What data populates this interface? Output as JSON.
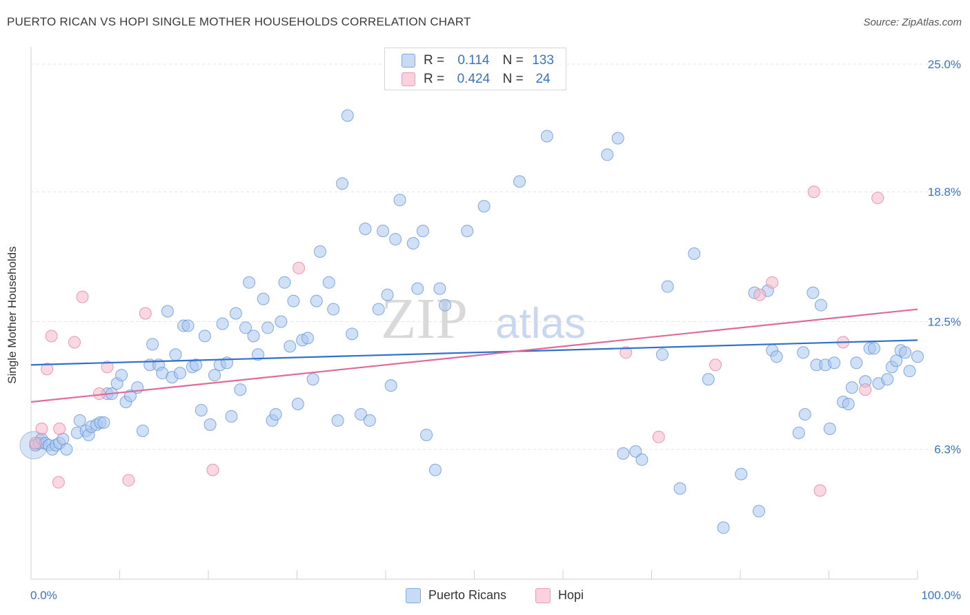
{
  "header": {
    "title": "PUERTO RICAN VS HOPI SINGLE MOTHER HOUSEHOLDS CORRELATION CHART",
    "source": "Source: ZipAtlas.com"
  },
  "legend": {
    "rows": [
      {
        "r_label": "R =",
        "r_value": "0.114",
        "n_label": "N =",
        "n_value": "133",
        "color": "#a9c6ee"
      },
      {
        "r_label": "R =",
        "r_value": "0.424",
        "n_label": "N =",
        "n_value": "24",
        "color": "#f6b8c9"
      }
    ],
    "bottom": [
      {
        "label": "Puerto Ricans",
        "color": "#a9c6ee"
      },
      {
        "label": "Hopi",
        "color": "#f6b8c9"
      }
    ]
  },
  "watermark": {
    "zip": "ZIP",
    "atlas": "atlas"
  },
  "chart_data": {
    "type": "scatter",
    "title": "PUERTO RICAN VS HOPI SINGLE MOTHER HOUSEHOLDS CORRELATION CHART",
    "xlabel": "",
    "ylabel": "Single Mother Households",
    "xlim": [
      0,
      100
    ],
    "ylim": [
      0,
      25.5
    ],
    "x_tick_labels": [
      "0.0%",
      "100.0%"
    ],
    "y_ticks": [
      6.3,
      12.5,
      18.8,
      25.0
    ],
    "y_tick_labels": [
      "6.3%",
      "12.5%",
      "18.8%",
      "25.0%"
    ],
    "grid": "horizontal dashed",
    "legend_position": "top-center",
    "colors": {
      "puerto_rican": "#5b8fd6",
      "puerto_rican_fill": "#a9c6ee",
      "hopi": "#e07a9c",
      "hopi_fill": "#f6b8c9",
      "trend_pr": "#2f6fcf",
      "trend_hopi": "#e0699a",
      "tick_text": "#3a72c4"
    },
    "series": [
      {
        "name": "Puerto Ricans",
        "r": 0.114,
        "n": 133,
        "trend": {
          "x": [
            0,
            100
          ],
          "y": [
            10.4,
            11.6
          ]
        },
        "points": [
          [
            0.5,
            6.5
          ],
          [
            0.9,
            6.6
          ],
          [
            1.2,
            6.8
          ],
          [
            1.6,
            6.6
          ],
          [
            2.0,
            6.5
          ],
          [
            2.4,
            6.3
          ],
          [
            2.8,
            6.5
          ],
          [
            3.2,
            6.6
          ],
          [
            3.6,
            6.8
          ],
          [
            4.0,
            6.3
          ],
          [
            5.2,
            7.1
          ],
          [
            5.5,
            7.7
          ],
          [
            6.2,
            7.2
          ],
          [
            6.5,
            7.0
          ],
          [
            6.8,
            7.4
          ],
          [
            7.4,
            7.5
          ],
          [
            7.8,
            7.6
          ],
          [
            8.2,
            7.6
          ],
          [
            8.6,
            9.0
          ],
          [
            9.1,
            9.0
          ],
          [
            9.7,
            9.5
          ],
          [
            10.2,
            9.9
          ],
          [
            10.7,
            8.6
          ],
          [
            11.2,
            8.9
          ],
          [
            12.0,
            9.3
          ],
          [
            12.6,
            7.2
          ],
          [
            13.4,
            10.4
          ],
          [
            13.7,
            11.4
          ],
          [
            14.4,
            10.4
          ],
          [
            14.8,
            10.0
          ],
          [
            15.4,
            13.0
          ],
          [
            15.9,
            9.8
          ],
          [
            16.3,
            10.9
          ],
          [
            16.8,
            10.0
          ],
          [
            17.2,
            12.3
          ],
          [
            17.7,
            12.3
          ],
          [
            18.2,
            10.3
          ],
          [
            18.6,
            10.4
          ],
          [
            19.2,
            8.2
          ],
          [
            19.6,
            11.8
          ],
          [
            20.2,
            7.5
          ],
          [
            20.7,
            9.9
          ],
          [
            21.3,
            10.4
          ],
          [
            21.6,
            12.4
          ],
          [
            22.1,
            10.5
          ],
          [
            22.6,
            7.9
          ],
          [
            23.1,
            12.9
          ],
          [
            23.6,
            9.2
          ],
          [
            24.2,
            12.2
          ],
          [
            24.6,
            14.4
          ],
          [
            25.1,
            11.8
          ],
          [
            25.6,
            10.9
          ],
          [
            26.2,
            13.6
          ],
          [
            26.7,
            12.2
          ],
          [
            27.2,
            7.7
          ],
          [
            27.6,
            8.0
          ],
          [
            28.2,
            12.5
          ],
          [
            28.6,
            14.4
          ],
          [
            29.2,
            11.3
          ],
          [
            29.6,
            13.5
          ],
          [
            30.1,
            8.5
          ],
          [
            30.6,
            11.6
          ],
          [
            31.2,
            11.7
          ],
          [
            31.8,
            9.7
          ],
          [
            32.2,
            13.5
          ],
          [
            32.6,
            15.9
          ],
          [
            33.6,
            14.4
          ],
          [
            34.1,
            13.1
          ],
          [
            34.6,
            7.7
          ],
          [
            35.1,
            19.2
          ],
          [
            35.7,
            22.5
          ],
          [
            36.2,
            11.9
          ],
          [
            37.2,
            8.0
          ],
          [
            37.7,
            17.0
          ],
          [
            38.2,
            7.7
          ],
          [
            39.2,
            13.1
          ],
          [
            39.7,
            16.9
          ],
          [
            40.2,
            13.8
          ],
          [
            40.6,
            9.4
          ],
          [
            41.1,
            16.5
          ],
          [
            41.6,
            18.4
          ],
          [
            43.1,
            16.3
          ],
          [
            43.6,
            14.1
          ],
          [
            44.2,
            16.9
          ],
          [
            44.6,
            7.0
          ],
          [
            45.6,
            5.3
          ],
          [
            46.1,
            14.1
          ],
          [
            46.7,
            13.3
          ],
          [
            49.2,
            16.9
          ],
          [
            51.1,
            18.1
          ],
          [
            55.1,
            19.3
          ],
          [
            58.2,
            21.5
          ],
          [
            65.0,
            20.6
          ],
          [
            66.2,
            21.4
          ],
          [
            66.8,
            6.1
          ],
          [
            68.2,
            6.2
          ],
          [
            68.9,
            5.8
          ],
          [
            71.2,
            10.9
          ],
          [
            71.8,
            14.2
          ],
          [
            73.2,
            4.4
          ],
          [
            74.8,
            15.8
          ],
          [
            76.4,
            9.7
          ],
          [
            78.1,
            2.5
          ],
          [
            80.1,
            5.1
          ],
          [
            81.6,
            13.9
          ],
          [
            82.1,
            3.3
          ],
          [
            83.1,
            14.0
          ],
          [
            83.6,
            11.1
          ],
          [
            84.1,
            10.8
          ],
          [
            86.6,
            7.1
          ],
          [
            87.1,
            11.0
          ],
          [
            87.3,
            8.0
          ],
          [
            88.2,
            13.9
          ],
          [
            88.6,
            10.4
          ],
          [
            89.1,
            13.3
          ],
          [
            89.6,
            10.4
          ],
          [
            90.1,
            7.3
          ],
          [
            90.6,
            10.5
          ],
          [
            91.6,
            8.6
          ],
          [
            92.2,
            8.5
          ],
          [
            92.6,
            9.3
          ],
          [
            93.1,
            10.5
          ],
          [
            94.1,
            9.6
          ],
          [
            94.6,
            11.2
          ],
          [
            95.1,
            11.2
          ],
          [
            95.6,
            9.5
          ],
          [
            96.6,
            9.7
          ],
          [
            97.1,
            10.3
          ],
          [
            97.6,
            10.6
          ],
          [
            98.1,
            11.1
          ],
          [
            98.6,
            11.0
          ],
          [
            99.1,
            10.1
          ],
          [
            100.0,
            10.8
          ]
        ]
      },
      {
        "name": "Hopi",
        "r": 0.424,
        "n": 24,
        "trend": {
          "x": [
            0,
            100
          ],
          "y": [
            8.6,
            13.1
          ]
        },
        "points": [
          [
            0.5,
            6.6
          ],
          [
            1.2,
            7.3
          ],
          [
            1.8,
            10.2
          ],
          [
            2.3,
            11.8
          ],
          [
            3.1,
            4.7
          ],
          [
            3.2,
            7.3
          ],
          [
            4.9,
            11.5
          ],
          [
            5.8,
            13.7
          ],
          [
            7.7,
            9.0
          ],
          [
            8.6,
            10.3
          ],
          [
            11.0,
            4.8
          ],
          [
            12.9,
            12.9
          ],
          [
            20.5,
            5.3
          ],
          [
            30.2,
            15.1
          ],
          [
            67.1,
            11.0
          ],
          [
            70.8,
            6.9
          ],
          [
            77.2,
            10.4
          ],
          [
            82.2,
            13.8
          ],
          [
            83.6,
            14.4
          ],
          [
            88.3,
            18.8
          ],
          [
            89.0,
            4.3
          ],
          [
            91.6,
            11.5
          ],
          [
            94.1,
            9.2
          ],
          [
            95.5,
            18.5
          ]
        ]
      }
    ]
  }
}
